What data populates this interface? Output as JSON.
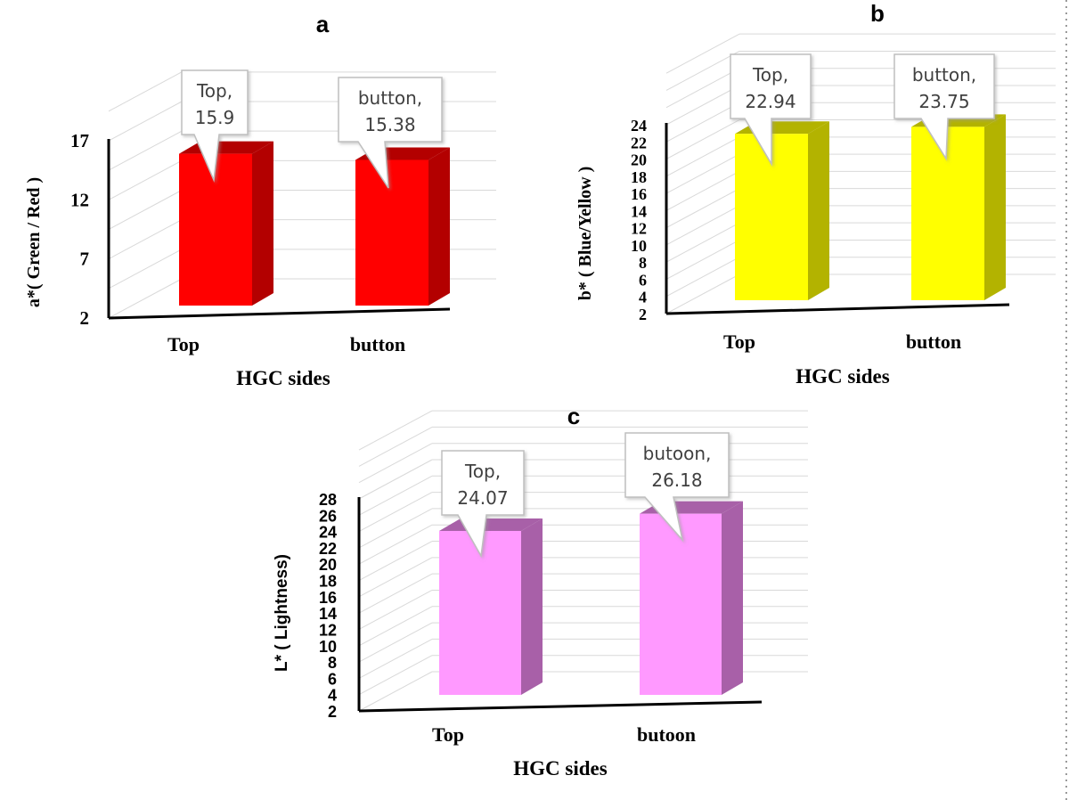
{
  "chart_data": [
    {
      "type": "bar",
      "panel_label": "a",
      "categories": [
        "Top",
        "button"
      ],
      "values": [
        15.9,
        15.38
      ],
      "data_labels": [
        [
          "Top,",
          "15.9"
        ],
        [
          "button,",
          "15.38"
        ]
      ],
      "xlabel": "HGC sides",
      "ylabel": "a*( Green / Red )",
      "yticks": [
        2,
        7,
        12,
        17
      ],
      "ylim": [
        2,
        17
      ],
      "grid": true,
      "bar_color": "#ff0000",
      "bar_side_color": "#b30000"
    },
    {
      "type": "bar",
      "panel_label": "b",
      "categories": [
        "Top",
        "button"
      ],
      "values": [
        22.94,
        23.75
      ],
      "data_labels": [
        [
          "Top,",
          "22.94"
        ],
        [
          "button,",
          "23.75"
        ]
      ],
      "xlabel": "HGC sides",
      "ylabel": "b* ( Blue/Yellow )",
      "yticks": [
        2,
        4,
        6,
        8,
        10,
        12,
        14,
        16,
        18,
        20,
        22,
        24
      ],
      "ylim": [
        2,
        24
      ],
      "grid": true,
      "bar_color": "#ffff00",
      "bar_side_color": "#b3b300"
    },
    {
      "type": "bar",
      "panel_label": "c",
      "categories": [
        "Top",
        "butoon"
      ],
      "values": [
        24.07,
        26.18
      ],
      "data_labels": [
        [
          "Top,",
          "24.07"
        ],
        [
          "butoon,",
          "26.18"
        ]
      ],
      "xlabel": "HGC sides",
      "ylabel": "L* ( Lightness)",
      "yticks": [
        2,
        4,
        6,
        8,
        10,
        12,
        14,
        16,
        18,
        20,
        22,
        24,
        26,
        28
      ],
      "ylim": [
        2,
        28
      ],
      "grid": true,
      "bar_color": "#ff99ff",
      "bar_side_color": "#a860a8"
    }
  ]
}
